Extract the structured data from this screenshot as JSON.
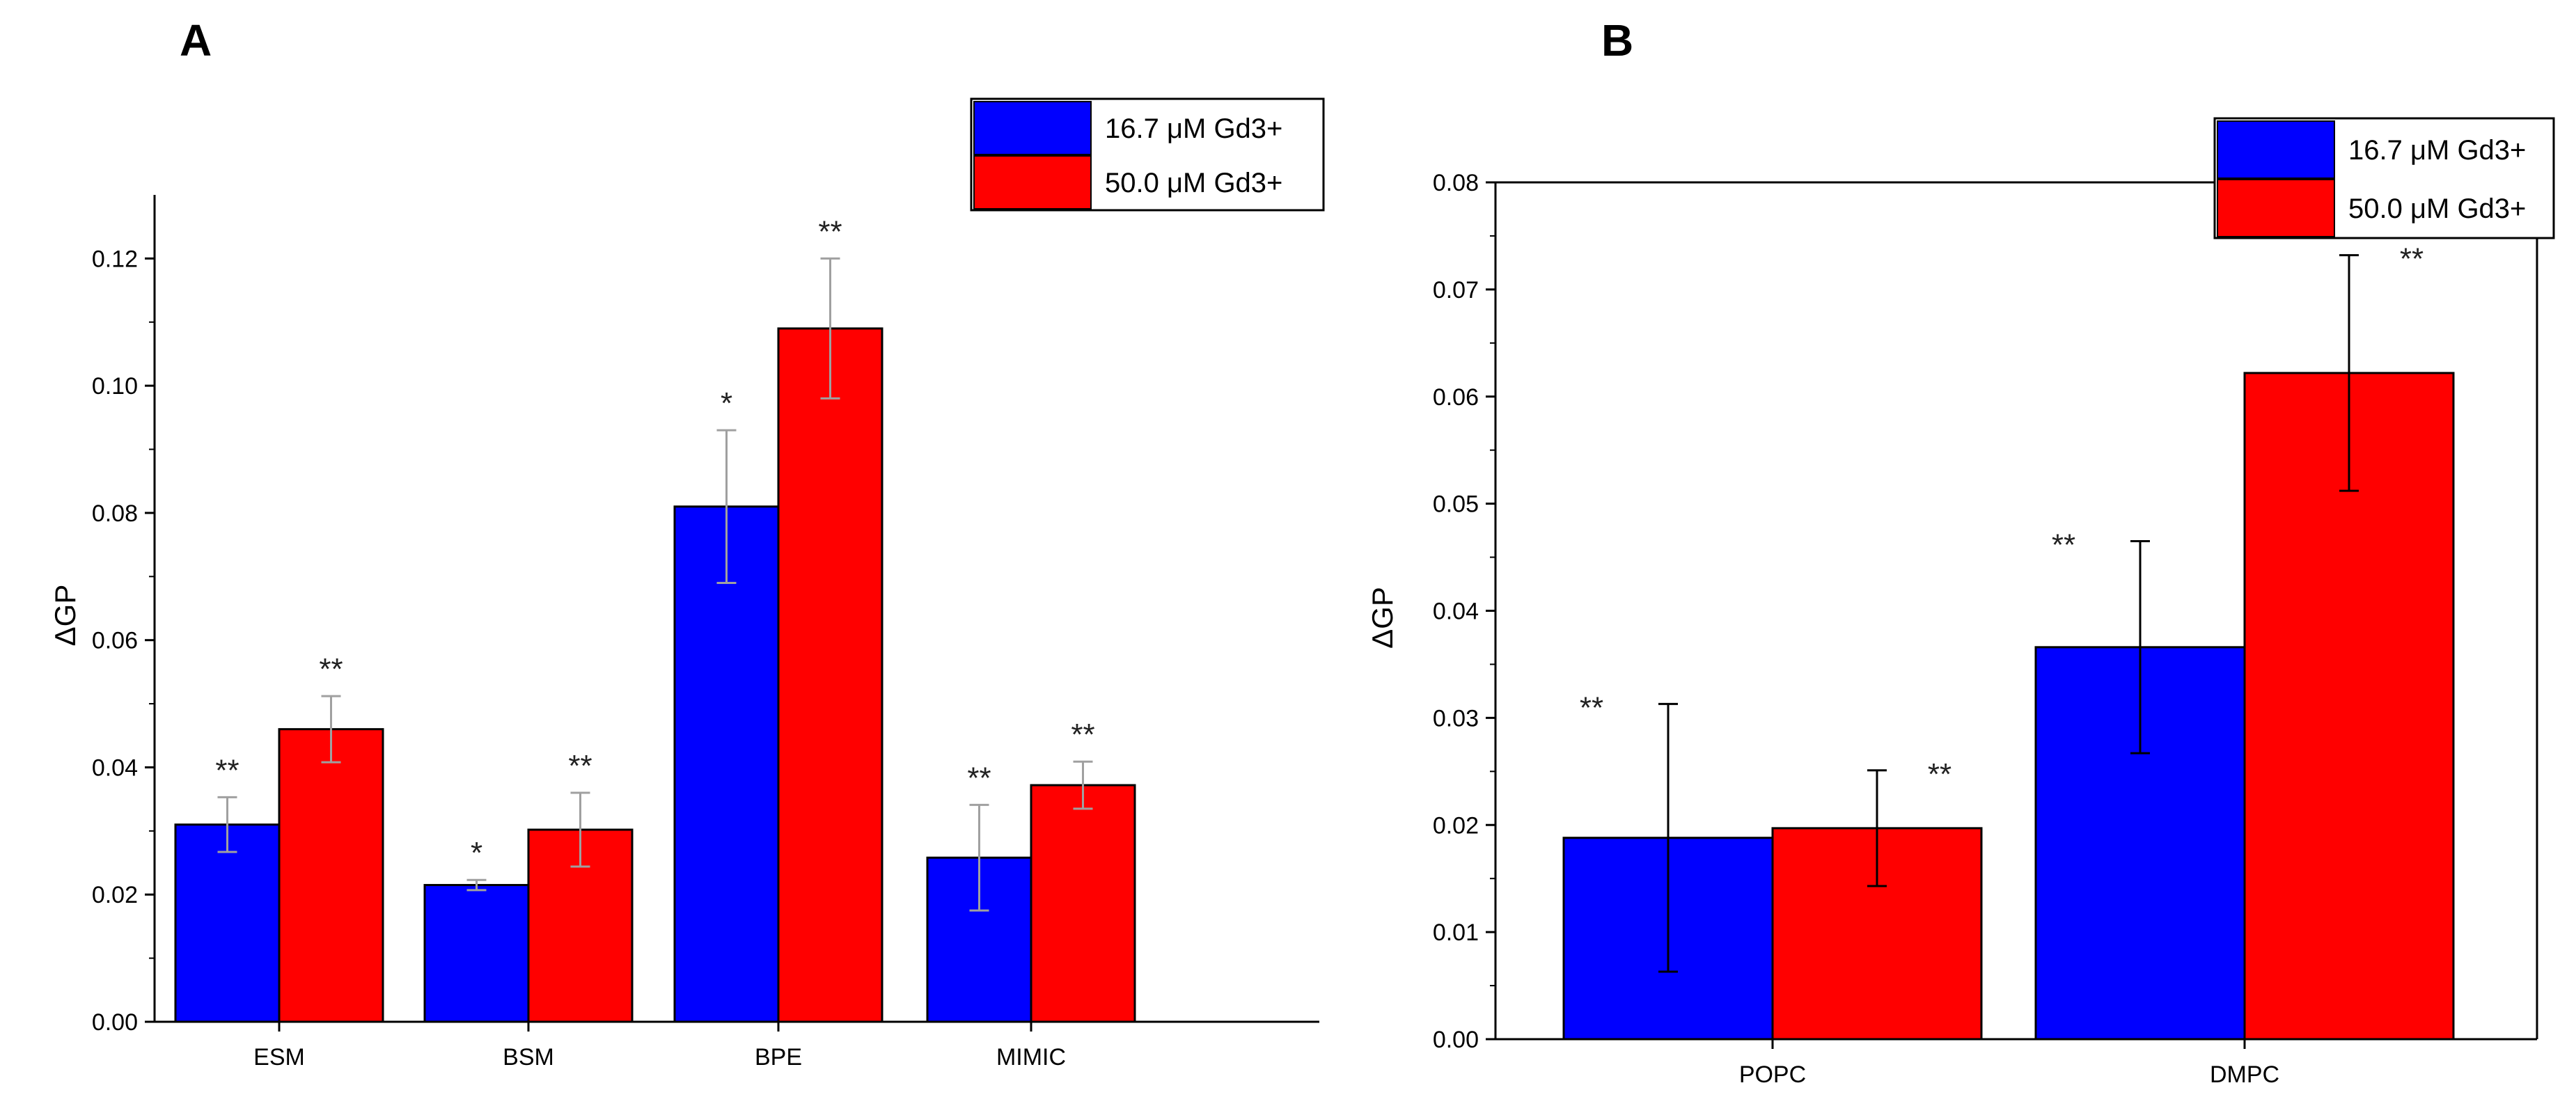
{
  "panels": [
    {
      "label": "A"
    },
    {
      "label": "B"
    }
  ],
  "colors": {
    "series1": "#0000ff",
    "series2": "#ff0000",
    "axis": "#000000",
    "error_A": "#a0a0a0",
    "error_B": "#000000"
  },
  "chart_data": [
    {
      "panel": "A",
      "type": "bar",
      "ylabel": "ΔGP",
      "xlabel": "",
      "ylim": [
        0,
        0.13
      ],
      "yticks": [
        "0.00",
        "0.02",
        "0.04",
        "0.06",
        "0.08",
        "0.10",
        "0.12"
      ],
      "categories": [
        "ESM",
        "BSM",
        "BPE",
        "MIMIC"
      ],
      "legend": {
        "position": "top-right",
        "entries": [
          "16.7 μM Gd3+",
          "50.0 μM Gd3+"
        ]
      },
      "series": [
        {
          "name": "16.7 μM Gd3+",
          "values": [
            0.031,
            0.0215,
            0.081,
            0.0258
          ],
          "errors": [
            0.0043,
            0.0008,
            0.012,
            0.0083
          ],
          "significance": [
            "**",
            "*",
            "*",
            "**"
          ]
        },
        {
          "name": "50.0 μM Gd3+",
          "values": [
            0.046,
            0.0302,
            0.109,
            0.0372
          ],
          "errors": [
            0.0052,
            0.0058,
            0.011,
            0.0037
          ],
          "significance": [
            "**",
            "**",
            "**",
            "**"
          ]
        }
      ]
    },
    {
      "panel": "B",
      "type": "bar",
      "ylabel": "ΔGP",
      "xlabel": "",
      "ylim": [
        0,
        0.08
      ],
      "yticks": [
        "0.00",
        "0.01",
        "0.02",
        "0.03",
        "0.04",
        "0.05",
        "0.06",
        "0.07",
        "0.08"
      ],
      "categories": [
        "POPC",
        "DMPC"
      ],
      "legend": {
        "position": "top-right",
        "entries": [
          "16.7 μM Gd3+",
          "50.0 μM Gd3+"
        ]
      },
      "series": [
        {
          "name": "16.7 μM Gd3+",
          "values": [
            0.0188,
            0.0366
          ],
          "errors": [
            0.0125,
            0.0099
          ],
          "significance": [
            "**",
            "**"
          ]
        },
        {
          "name": "50.0 μM Gd3+",
          "values": [
            0.0197,
            0.0622
          ],
          "errors": [
            0.0054,
            0.011
          ],
          "significance": [
            "**",
            "**"
          ]
        }
      ]
    }
  ]
}
